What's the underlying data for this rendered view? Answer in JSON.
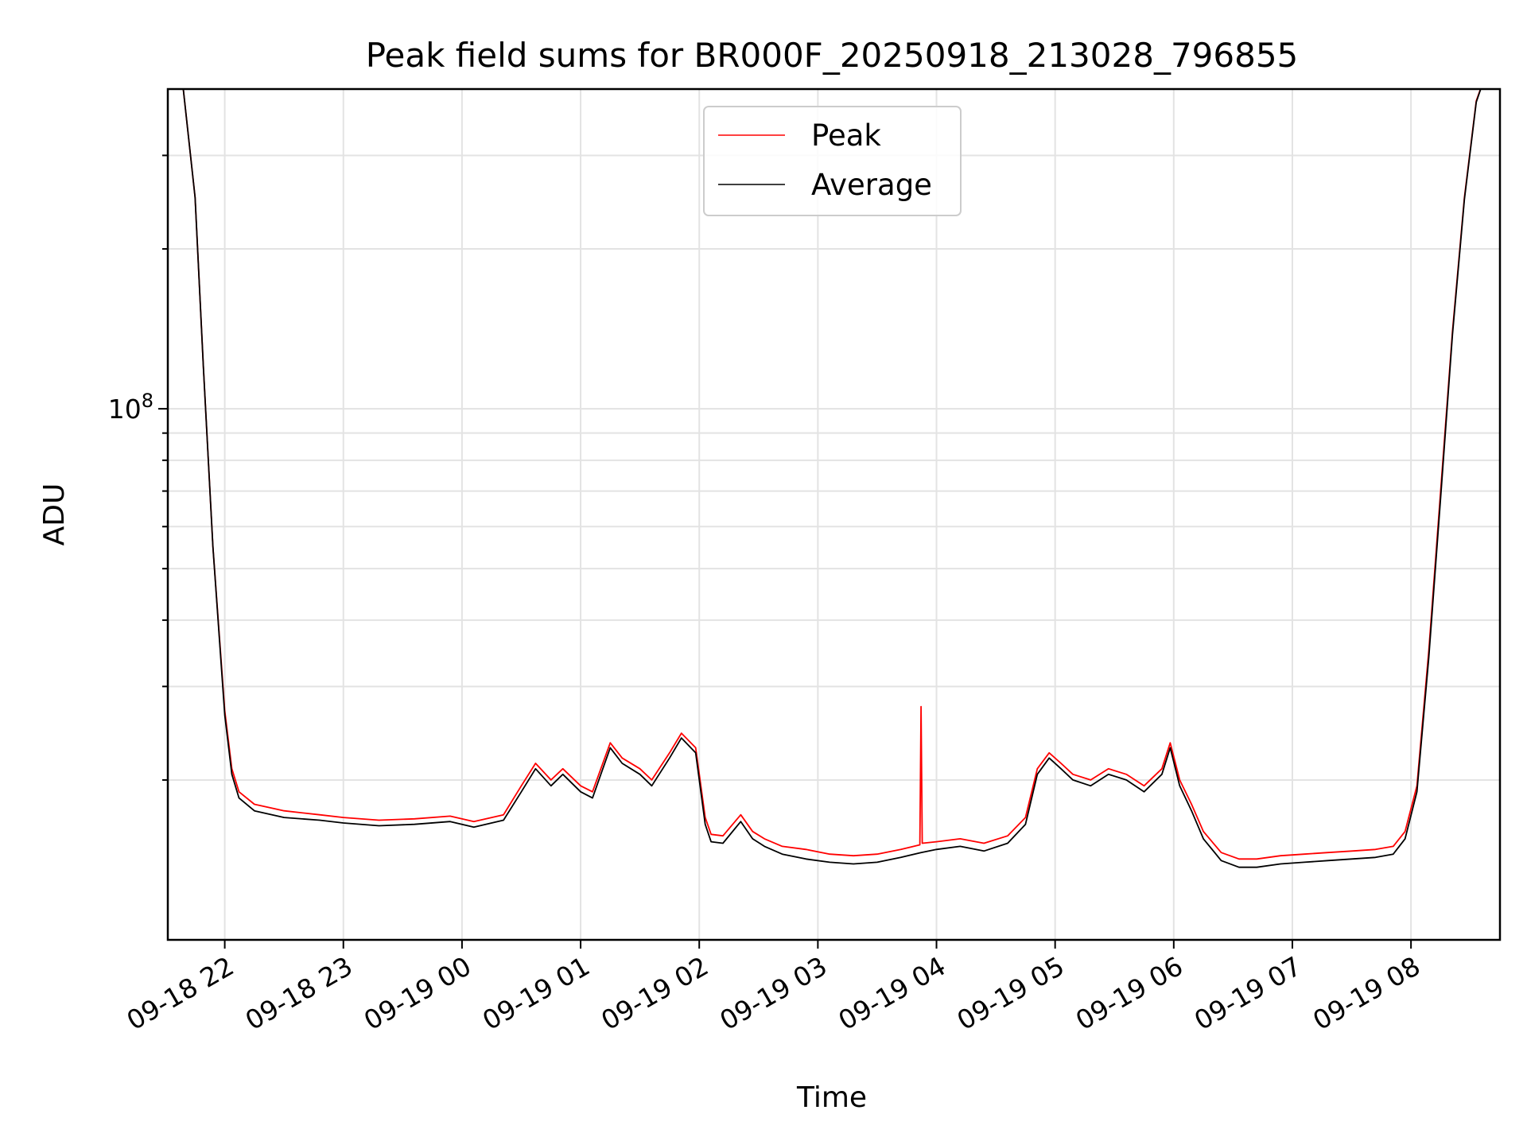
{
  "chart_data": {
    "type": "line",
    "title": "Peak field sums for BR000F_20250918_213028_796855",
    "xlabel": "Time",
    "ylabel": "ADU",
    "yscale": "log",
    "grid": true,
    "legend_position": "upper-center",
    "x_unit": "hours since 09-18 22:00",
    "xlim": [
      -0.48,
      10.75
    ],
    "ylim": [
      10000000,
      400000000
    ],
    "x_ticks": [
      {
        "value": 0,
        "label": "09-18 22"
      },
      {
        "value": 1,
        "label": "09-18 23"
      },
      {
        "value": 2,
        "label": "09-19 00"
      },
      {
        "value": 3,
        "label": "09-19 01"
      },
      {
        "value": 4,
        "label": "09-19 02"
      },
      {
        "value": 5,
        "label": "09-19 03"
      },
      {
        "value": 6,
        "label": "09-19 04"
      },
      {
        "value": 7,
        "label": "09-19 05"
      },
      {
        "value": 8,
        "label": "09-19 06"
      },
      {
        "value": 9,
        "label": "09-19 07"
      },
      {
        "value": 10,
        "label": "09-19 08"
      }
    ],
    "y_major_ticks": [
      {
        "value": 100000000,
        "base": "10",
        "exp": "8"
      }
    ],
    "y_minor_ticks": [
      20000000,
      30000000,
      40000000,
      50000000,
      60000000,
      70000000,
      80000000,
      90000000,
      200000000,
      300000000
    ],
    "series": [
      {
        "name": "Peak",
        "color": "#ff0000",
        "x": [
          -0.36,
          -0.25,
          -0.18,
          -0.1,
          0.0,
          0.06,
          0.12,
          0.25,
          0.5,
          0.8,
          1.0,
          1.3,
          1.6,
          1.9,
          2.1,
          2.35,
          2.5,
          2.62,
          2.75,
          2.85,
          3.0,
          3.1,
          3.25,
          3.35,
          3.5,
          3.6,
          3.75,
          3.85,
          3.97,
          4.05,
          4.1,
          4.2,
          4.35,
          4.45,
          4.55,
          4.7,
          4.9,
          5.1,
          5.3,
          5.5,
          5.7,
          5.86,
          5.87,
          5.88,
          6.0,
          6.2,
          6.4,
          6.6,
          6.75,
          6.85,
          6.95,
          7.05,
          7.15,
          7.3,
          7.45,
          7.6,
          7.75,
          7.9,
          7.97,
          8.05,
          8.15,
          8.25,
          8.4,
          8.55,
          8.7,
          8.9,
          9.1,
          9.3,
          9.5,
          9.7,
          9.85,
          9.95,
          10.05,
          10.15,
          10.25,
          10.35,
          10.45,
          10.55,
          10.62
        ],
        "values": [
          420000000,
          250000000,
          120000000,
          55000000,
          27000000,
          21000000,
          19000000,
          18000000,
          17500000,
          17200000,
          17000000,
          16800000,
          16900000,
          17100000,
          16700000,
          17200000,
          19500000,
          21500000,
          20000000,
          21000000,
          19500000,
          19000000,
          23500000,
          22000000,
          21000000,
          20000000,
          22500000,
          24500000,
          23000000,
          17000000,
          15800000,
          15700000,
          17200000,
          16000000,
          15500000,
          15000000,
          14800000,
          14500000,
          14400000,
          14500000,
          14800000,
          15100000,
          27500000,
          15200000,
          15300000,
          15500000,
          15200000,
          15700000,
          17000000,
          21000000,
          22500000,
          21500000,
          20500000,
          20000000,
          21000000,
          20500000,
          19500000,
          21000000,
          23500000,
          20000000,
          18000000,
          16000000,
          14600000,
          14200000,
          14200000,
          14400000,
          14500000,
          14600000,
          14700000,
          14800000,
          15000000,
          16000000,
          19500000,
          35000000,
          70000000,
          140000000,
          250000000,
          380000000,
          420000000
        ]
      },
      {
        "name": "Average",
        "color": "#000000",
        "x": [
          -0.36,
          -0.25,
          -0.18,
          -0.1,
          0.0,
          0.06,
          0.12,
          0.25,
          0.5,
          0.8,
          1.0,
          1.3,
          1.6,
          1.9,
          2.1,
          2.35,
          2.5,
          2.62,
          2.75,
          2.85,
          3.0,
          3.1,
          3.25,
          3.35,
          3.5,
          3.6,
          3.75,
          3.85,
          3.97,
          4.05,
          4.1,
          4.2,
          4.35,
          4.45,
          4.55,
          4.7,
          4.9,
          5.1,
          5.3,
          5.5,
          5.7,
          5.87,
          6.0,
          6.2,
          6.4,
          6.6,
          6.75,
          6.85,
          6.95,
          7.05,
          7.15,
          7.3,
          7.45,
          7.6,
          7.75,
          7.9,
          7.97,
          8.05,
          8.15,
          8.25,
          8.4,
          8.55,
          8.7,
          8.9,
          9.1,
          9.3,
          9.5,
          9.7,
          9.85,
          9.95,
          10.05,
          10.15,
          10.25,
          10.35,
          10.45,
          10.55,
          10.62
        ],
        "values": [
          420000000,
          250000000,
          120000000,
          55000000,
          26500000,
          20500000,
          18500000,
          17500000,
          17000000,
          16800000,
          16600000,
          16400000,
          16500000,
          16700000,
          16300000,
          16800000,
          19000000,
          21000000,
          19500000,
          20500000,
          19000000,
          18500000,
          23000000,
          21500000,
          20500000,
          19500000,
          22000000,
          24000000,
          22500000,
          16500000,
          15300000,
          15200000,
          16700000,
          15500000,
          15000000,
          14500000,
          14200000,
          14000000,
          13900000,
          14000000,
          14300000,
          14600000,
          14800000,
          15000000,
          14700000,
          15200000,
          16500000,
          20500000,
          22000000,
          21000000,
          20000000,
          19500000,
          20500000,
          20000000,
          19000000,
          20500000,
          23000000,
          19500000,
          17500000,
          15500000,
          14100000,
          13700000,
          13700000,
          13900000,
          14000000,
          14100000,
          14200000,
          14300000,
          14500000,
          15500000,
          19000000,
          34000000,
          68000000,
          138000000,
          248000000,
          378000000,
          420000000
        ]
      }
    ]
  }
}
